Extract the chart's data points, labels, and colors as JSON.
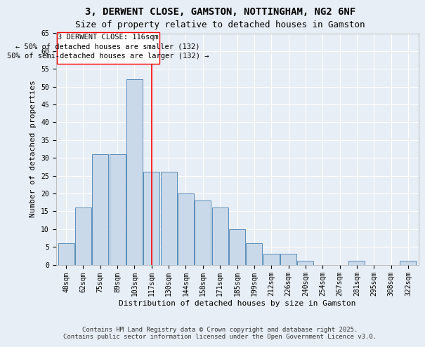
{
  "title": "3, DERWENT CLOSE, GAMSTON, NOTTINGHAM, NG2 6NF",
  "subtitle": "Size of property relative to detached houses in Gamston",
  "xlabel": "Distribution of detached houses by size in Gamston",
  "ylabel": "Number of detached properties",
  "categories": [
    "48sqm",
    "62sqm",
    "75sqm",
    "89sqm",
    "103sqm",
    "117sqm",
    "130sqm",
    "144sqm",
    "158sqm",
    "171sqm",
    "185sqm",
    "199sqm",
    "212sqm",
    "226sqm",
    "240sqm",
    "254sqm",
    "267sqm",
    "281sqm",
    "295sqm",
    "308sqm",
    "322sqm"
  ],
  "values": [
    6,
    16,
    31,
    31,
    52,
    26,
    26,
    20,
    18,
    16,
    10,
    6,
    3,
    3,
    1,
    0,
    0,
    1,
    0,
    0,
    1
  ],
  "bar_color": "#c9d9ea",
  "bar_edge_color": "#5b8db8",
  "red_line_index": 5,
  "red_line_label": "3 DERWENT CLOSE: 116sqm",
  "annotation_left": "← 50% of detached houses are smaller (132)",
  "annotation_right": "50% of semi-detached houses are larger (132) →",
  "ylim": [
    0,
    65
  ],
  "yticks": [
    0,
    5,
    10,
    15,
    20,
    25,
    30,
    35,
    40,
    45,
    50,
    55,
    60,
    65
  ],
  "background_color": "#e8eef5",
  "grid_color": "#ffffff",
  "footer": "Contains HM Land Registry data © Crown copyright and database right 2025.\nContains public sector information licensed under the Open Government Licence v3.0.",
  "title_fontsize": 10,
  "subtitle_fontsize": 9,
  "axis_label_fontsize": 8,
  "tick_fontsize": 7,
  "annotation_fontsize": 7.5,
  "footer_fontsize": 6.5
}
